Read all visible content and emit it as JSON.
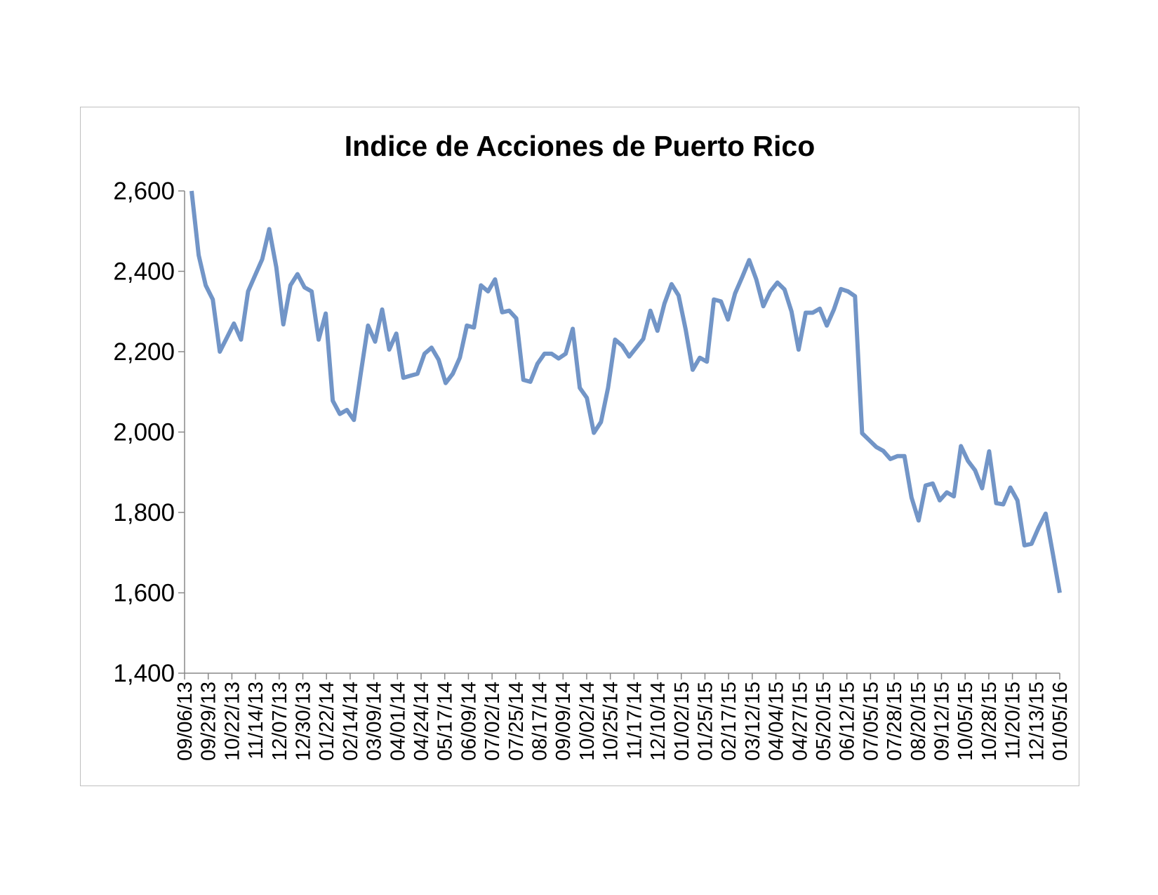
{
  "chart_data": {
    "type": "line",
    "title": "Indice de Acciones de Puerto Rico",
    "xlabel": "",
    "ylabel": "",
    "ylim": [
      1400,
      2600
    ],
    "yticks": [
      1400,
      1600,
      1800,
      2000,
      2200,
      2400,
      2600
    ],
    "ytick_labels": [
      "1,400",
      "1,600",
      "1,800",
      "2,000",
      "2,200",
      "2,400",
      "2,600"
    ],
    "xtick_labels": [
      "09/06/13",
      "09/29/13",
      "10/22/13",
      "11/14/13",
      "12/07/13",
      "12/30/13",
      "01/22/14",
      "02/14/14",
      "03/09/14",
      "04/01/14",
      "04/24/14",
      "05/17/14",
      "06/09/14",
      "07/02/14",
      "07/25/14",
      "08/17/14",
      "09/09/14",
      "10/02/14",
      "10/25/14",
      "11/17/14",
      "12/10/14",
      "01/02/15",
      "01/25/15",
      "02/17/15",
      "03/12/15",
      "04/04/15",
      "04/27/15",
      "05/20/15",
      "06/12/15",
      "07/05/15",
      "07/28/15",
      "08/20/15",
      "09/12/15",
      "10/05/15",
      "10/28/15",
      "11/20/15",
      "12/13/15",
      "01/05/16"
    ],
    "legend": "none",
    "grid": false,
    "line_color": "#7295c7",
    "series": [
      {
        "values": [
          2600,
          2440,
          2365,
          2330,
          2200,
          2235,
          2270,
          2230,
          2350,
          2390,
          2430,
          2505,
          2410,
          2268,
          2365,
          2393,
          2360,
          2350,
          2230,
          2295,
          2078,
          2045,
          2055,
          2030,
          2150,
          2265,
          2225,
          2305,
          2205,
          2245,
          2135,
          2140,
          2145,
          2195,
          2210,
          2180,
          2122,
          2145,
          2185,
          2265,
          2260,
          2365,
          2350,
          2380,
          2298,
          2302,
          2283,
          2130,
          2125,
          2170,
          2195,
          2195,
          2183,
          2195,
          2257,
          2110,
          2085,
          1998,
          2025,
          2110,
          2230,
          2215,
          2188,
          2210,
          2232,
          2302,
          2252,
          2320,
          2368,
          2340,
          2255,
          2155,
          2185,
          2175,
          2330,
          2325,
          2280,
          2345,
          2385,
          2428,
          2380,
          2313,
          2350,
          2372,
          2355,
          2300,
          2205,
          2297,
          2297,
          2307,
          2265,
          2305,
          2356,
          2350,
          2338,
          1997,
          1980,
          1963,
          1953,
          1933,
          1940,
          1940,
          1837,
          1780,
          1867,
          1872,
          1830,
          1850,
          1840,
          1965,
          1928,
          1905,
          1860,
          1952,
          1823,
          1820,
          1862,
          1830,
          1718,
          1722,
          1762,
          1797,
          1700,
          1600
        ]
      }
    ]
  }
}
